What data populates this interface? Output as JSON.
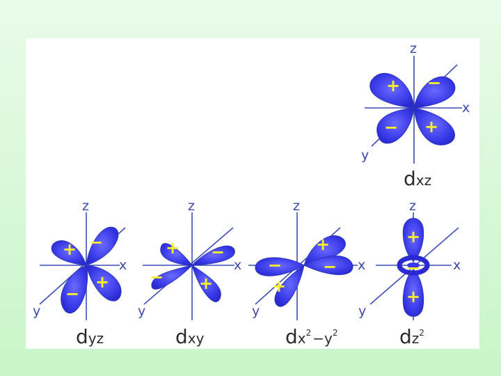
{
  "orbitals": [
    {
      "id": "dxz",
      "label": {
        "main": "d",
        "sub": "xz"
      },
      "axes": {
        "x": "x",
        "y": "y",
        "z": "z"
      },
      "signs": [
        "+",
        "−",
        "−",
        "+"
      ]
    },
    {
      "id": "dyz",
      "label": {
        "main": "d",
        "sub": "yz"
      },
      "axes": {
        "x": "x",
        "y": "y",
        "z": "z"
      },
      "signs": [
        "+",
        "−",
        "−",
        "+"
      ]
    },
    {
      "id": "dxy",
      "label": {
        "main": "d",
        "sub": "xy"
      },
      "axes": {
        "x": "x",
        "y": "y",
        "z": "z"
      },
      "signs": [
        "+",
        "−",
        "−",
        "+"
      ]
    },
    {
      "id": "dx2y2",
      "label": {
        "main": "d",
        "sub_a": "x",
        "sup_a": "2",
        "minus": "−",
        "sub_b": "y",
        "sup_b": "2"
      },
      "axes": {
        "x": "x",
        "y": "y",
        "z": "z"
      },
      "signs": [
        "+",
        "−",
        "−",
        "+"
      ]
    },
    {
      "id": "dz2",
      "label": {
        "main": "d",
        "sub": "z",
        "sup": "2"
      },
      "axes": {
        "x": "x",
        "y": "y",
        "z": "z"
      },
      "signs": [
        "+",
        "−",
        "+"
      ]
    }
  ],
  "colors": {
    "background": "#d4f7d4",
    "panel": "#ffffff",
    "lobe": "#4848f0",
    "axis": "#3d4cb8",
    "sign": "#f7f02a"
  }
}
